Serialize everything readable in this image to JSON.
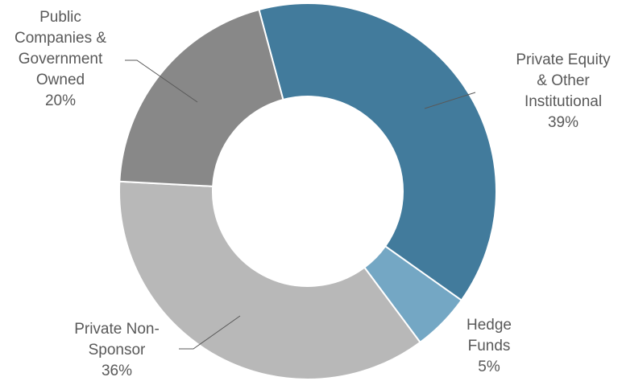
{
  "chart_data": {
    "type": "donut",
    "categories": [
      [
        "Private Equity",
        "& Other",
        "Institutional"
      ],
      [
        "Hedge",
        "Funds"
      ],
      [
        "Private Non-",
        "Sponsor"
      ],
      [
        "Public",
        "Companies &",
        "Government",
        "Owned"
      ]
    ],
    "values": [
      39,
      5,
      36,
      20
    ],
    "value_labels": [
      "39%",
      "5%",
      "36%",
      "20%"
    ],
    "colors": [
      "#427b9c",
      "#74a7c4",
      "#b8b8b8",
      "#888888"
    ]
  }
}
